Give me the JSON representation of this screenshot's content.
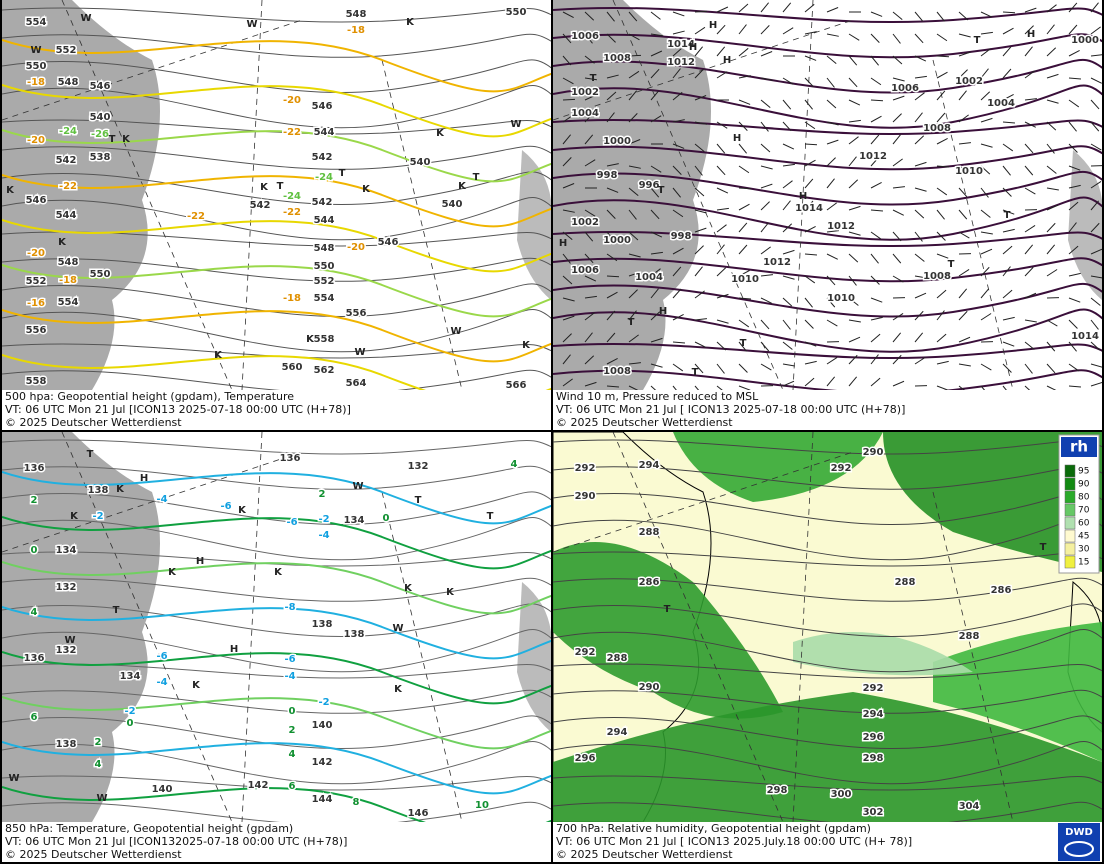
{
  "panels": [
    {
      "caption": [
        "500 hpa: Geopotential height (gpdam), Temperature",
        "VT: 06 UTC Mon  21 Jul [ICON13 2025-07-18 00:00 UTC  (H+78)]",
        "© 2025 Deutscher Wetterdienst"
      ],
      "height_labels": [
        "554",
        "552",
        "550",
        "548",
        "546",
        "540",
        "538",
        "542",
        "544",
        "546",
        "548",
        "550",
        "552",
        "554",
        "556",
        "558",
        "546",
        "544",
        "542",
        "542",
        "542",
        "544",
        "548",
        "550",
        "552",
        "554",
        "556",
        "558",
        "560",
        "562",
        "564",
        "566",
        "540",
        "540",
        "546",
        "548",
        "550"
      ],
      "temp_labels": [
        "-18",
        "-18",
        "-20",
        "-22",
        "-24",
        "-26",
        "-20",
        "-22",
        "-24",
        "-22",
        "-22",
        "-24",
        "-20",
        "-20",
        "-18",
        "-16",
        "-18"
      ],
      "markers": [
        "T",
        "K",
        "K",
        "W",
        "W",
        "W",
        "K",
        "K",
        "T",
        "K",
        "T",
        "K",
        "T",
        "K",
        "K",
        "K",
        "W",
        "W",
        "K",
        "W",
        "K"
      ]
    },
    {
      "caption": [
        "Wind 10 m, Pressure reduced to MSL",
        "VT: 06 UTC Mon  21 Jul [ ICON13 2025-07-18 00:00 UTC  (H+78)]",
        "© 2025 Deutscher Wetterdienst"
      ],
      "height_labels": [
        "1006",
        "1008",
        "1002",
        "1004",
        "1000",
        "998",
        "996",
        "1002",
        "1000",
        "998",
        "1006",
        "1004",
        "1010",
        "1012",
        "1010",
        "1014",
        "1012",
        "1012",
        "1012",
        "1014",
        "1008",
        "1006",
        "1002",
        "1004",
        "1010",
        "1008",
        "1000",
        "1014",
        "1008"
      ],
      "temp_labels": [],
      "markers": [
        "H",
        "H",
        "H",
        "T",
        "H",
        "H",
        "T",
        "H",
        "T",
        "T",
        "H",
        "T",
        "H",
        "T",
        "T",
        "T"
      ]
    },
    {
      "caption": [
        "850 hPa:  Temperature, Geopotential height (gpdam)",
        "VT: 06 UTC Mon  21 Jul [ICON132025-07-18 00:00 UTC  (H+78)]",
        "© 2025 Deutscher Wetterdienst"
      ],
      "height_labels": [
        "136",
        "138",
        "134",
        "132",
        "132",
        "136",
        "134",
        "138",
        "138",
        "138",
        "136",
        "134",
        "132",
        "140",
        "142",
        "142",
        "140",
        "144",
        "146"
      ],
      "temp_labels": [
        "0",
        "4",
        "6",
        "2",
        "-2",
        "-4",
        "-6",
        "-6",
        "-2",
        "-4",
        "-8",
        "-6",
        "-4",
        "-6",
        "-4",
        "-2",
        "-2",
        "0",
        "0",
        "2",
        "4",
        "6",
        "8",
        "10",
        "2",
        "4",
        "2",
        "0",
        "4"
      ],
      "markers": [
        "H",
        "H",
        "H",
        "K",
        "K",
        "K",
        "K",
        "K",
        "K",
        "K",
        "K",
        "K",
        "T",
        "T",
        "T",
        "T",
        "W",
        "W",
        "W",
        "W",
        "W"
      ]
    },
    {
      "caption": [
        "700 hPa:  Relative humidity, Geopotential height (gpdam)",
        "VT: 06 UTC Mon  21 Jul [ ICON13  2025.July.18 00:00 UTC  (H+ 78)]",
        "© 2025 Deutscher Wetterdienst"
      ],
      "height_labels": [
        "292",
        "290",
        "294",
        "288",
        "286",
        "292",
        "288",
        "290",
        "294",
        "296",
        "298",
        "300",
        "302",
        "304",
        "292",
        "290",
        "288",
        "288",
        "286",
        "292",
        "294",
        "296",
        "298"
      ],
      "temp_labels": [],
      "markers": [
        "T",
        "T"
      ]
    }
  ],
  "legend": {
    "title": "rh",
    "levels": [
      95,
      90,
      80,
      70,
      60,
      45,
      30,
      15
    ]
  },
  "logo": "DWD"
}
